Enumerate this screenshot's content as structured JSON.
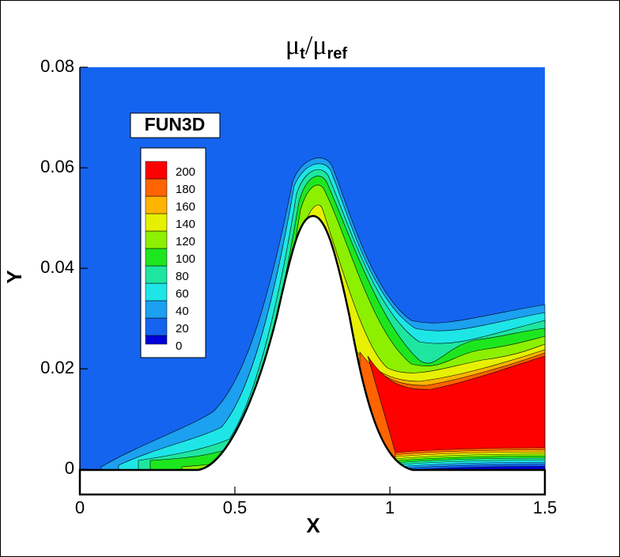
{
  "chart_data": {
    "type": "contour",
    "title_parts": [
      "μ",
      "t",
      "/μ",
      "ref"
    ],
    "annotation": "FUN3D",
    "x_label": "X",
    "y_label": "Y",
    "xlim": [
      0,
      1.5
    ],
    "ylim": [
      -0.005,
      0.08
    ],
    "xticks": [
      0,
      0.5,
      1,
      1.5
    ],
    "yticks": [
      0,
      0.02,
      0.04,
      0.06,
      0.08
    ],
    "levels": [
      0,
      20,
      40,
      60,
      80,
      100,
      120,
      140,
      160,
      180,
      200
    ],
    "colors": [
      "#0000d8",
      "#1464f0",
      "#1ca0f0",
      "#1ee6e6",
      "#1ee6a0",
      "#1ee61e",
      "#8cf000",
      "#e6f000",
      "#ffb400",
      "#ff6400",
      "#ff0000"
    ]
  }
}
